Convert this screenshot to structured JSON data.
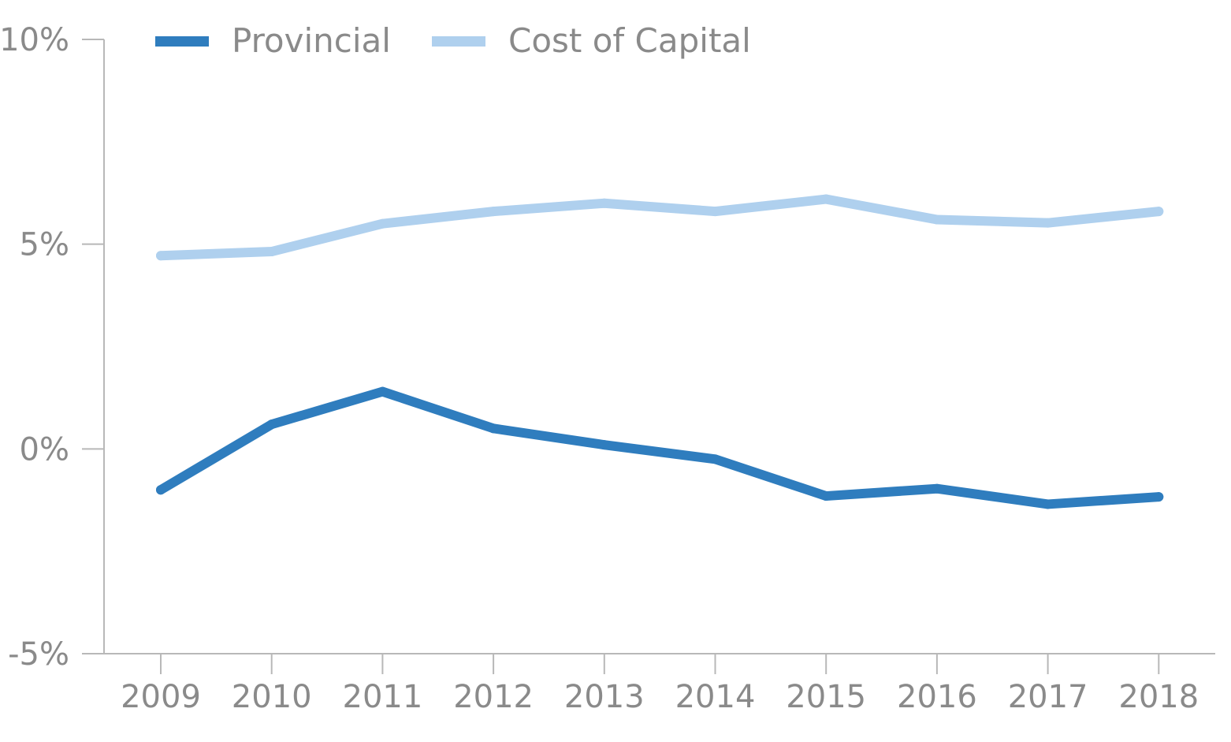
{
  "chart_data": {
    "type": "line",
    "title": "",
    "xlabel": "",
    "ylabel": "",
    "categories": [
      "2009",
      "2010",
      "2011",
      "2012",
      "2013",
      "2014",
      "2015",
      "2016",
      "2017",
      "2018"
    ],
    "y_ticks": [
      10,
      5,
      0,
      -5
    ],
    "y_tick_labels": [
      "10%",
      "5%",
      "0%",
      "-5%"
    ],
    "ylim": [
      -5,
      10
    ],
    "grid": false,
    "legend_position": "top-left",
    "series": [
      {
        "name": "Provincial",
        "color": "#2f7dbe",
        "values": [
          -1.0,
          0.6,
          1.4,
          0.5,
          0.1,
          -0.25,
          -1.15,
          -0.97,
          -1.35,
          -1.17
        ]
      },
      {
        "name": "Cost of Capital",
        "color": "#afd0ee",
        "values": [
          4.72,
          4.82,
          5.5,
          5.8,
          6.0,
          5.8,
          6.1,
          5.6,
          5.52,
          5.8
        ]
      }
    ],
    "axis_color": "#b8b8b8",
    "label_color": "#8a8a8a"
  }
}
